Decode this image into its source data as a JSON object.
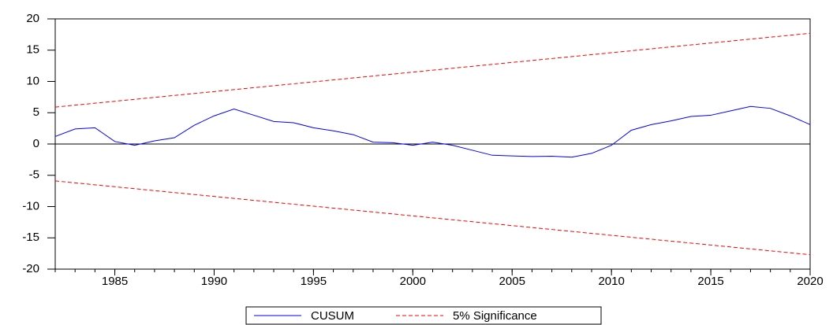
{
  "chart_data": {
    "type": "line",
    "xlim": [
      1982,
      2020
    ],
    "xticks": [
      1985,
      1990,
      1995,
      2000,
      2005,
      2010,
      2015,
      2020
    ],
    "ylim": [
      -20,
      20
    ],
    "yticks": [
      -20,
      -15,
      -10,
      -5,
      0,
      5,
      10,
      15,
      20
    ],
    "reference_line": 0,
    "legend_position": "bottom",
    "series": [
      {
        "name": "CUSUM",
        "color": "#0000ff",
        "dash": false,
        "x": [
          1982,
          1983,
          1984,
          1985,
          1986,
          1987,
          1988,
          1989,
          1990,
          1991,
          1992,
          1993,
          1994,
          1995,
          1996,
          1997,
          1998,
          1999,
          2000,
          2001,
          2002,
          2003,
          2004,
          2005,
          2006,
          2007,
          2008,
          2009,
          2010,
          2011,
          2012,
          2013,
          2014,
          2015,
          2016,
          2017,
          2018,
          2019,
          2020
        ],
        "values": [
          1.2,
          2.4,
          2.6,
          0.4,
          -0.2,
          0.5,
          1.0,
          3.0,
          4.5,
          5.6,
          4.6,
          3.6,
          3.4,
          2.6,
          2.1,
          1.5,
          0.3,
          0.2,
          -0.2,
          0.3,
          -0.2,
          -1.0,
          -1.8,
          -1.9,
          -2.0,
          -1.95,
          -2.1,
          -1.5,
          -0.2,
          2.2,
          3.1,
          3.7,
          4.4,
          4.6,
          5.3,
          6.0,
          5.7,
          4.5,
          3.1
        ]
      },
      {
        "name": "5% Significance",
        "color": "#ff0000",
        "dash": true,
        "x": [
          1982,
          2020
        ],
        "values": [
          5.9,
          17.7
        ],
        "lower": [
          -5.9,
          -17.7
        ]
      }
    ]
  }
}
